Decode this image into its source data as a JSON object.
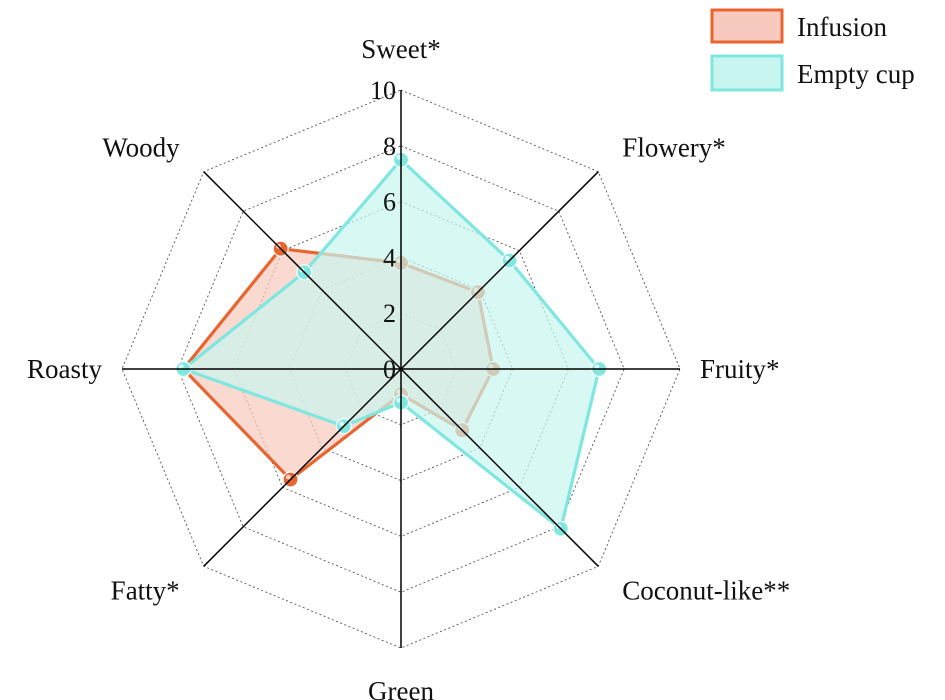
{
  "chart_data": {
    "type": "radar",
    "axes": [
      "Sweet*",
      "Flowery*",
      "Fruity*",
      "Coconut-like**",
      "Green",
      "Fatty*",
      "Roasty",
      "Woody"
    ],
    "r_ticks": [
      "0",
      "2",
      "4",
      "6",
      "8",
      "10"
    ],
    "r_range": [
      0,
      10
    ],
    "grid": true,
    "legend_position": "top-right",
    "series": [
      {
        "name": "Infusion",
        "values": [
          3.8,
          3.9,
          3.3,
          3.1,
          0.9,
          5.6,
          7.8,
          6.1
        ],
        "stroke": "#E8652F",
        "fill": "#F8C9BE",
        "marker": "#E8652F"
      },
      {
        "name": "Empty cup",
        "values": [
          7.5,
          5.5,
          7.1,
          8.1,
          1.2,
          2.9,
          7.8,
          4.9
        ],
        "stroke": "#7FE6E0",
        "fill": "#C8F5EF",
        "marker": "#7FE6E0"
      }
    ]
  }
}
